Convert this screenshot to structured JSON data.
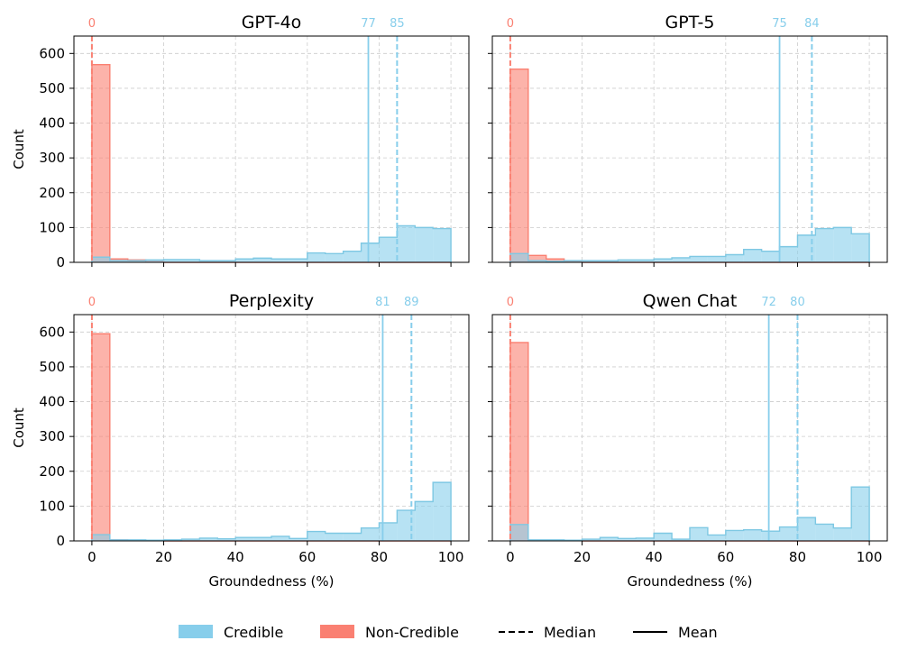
{
  "figure": {
    "legend": {
      "placement": "bottom-center",
      "entries": [
        {
          "label": "Credible",
          "kind": "patch",
          "color": "#87ceeb"
        },
        {
          "label": "Non-Credible",
          "kind": "patch",
          "color": "#fa8072"
        },
        {
          "label": "Median",
          "kind": "dashed-line",
          "color": "#000000"
        },
        {
          "label": "Mean",
          "kind": "solid-line",
          "color": "#000000"
        }
      ]
    },
    "colors": {
      "credible": "#87ceeb",
      "credible_edge": "#7ec8e3",
      "noncredible": "#fa8072",
      "noncredible_fill": "#f9a99f",
      "grid": "#cccccc"
    }
  },
  "chart_data": [
    {
      "type": "histogram",
      "title": "GPT-4o",
      "xlabel": "",
      "ylabel": "Count",
      "xlim": [
        -5,
        105
      ],
      "ylim": [
        0,
        650
      ],
      "xticks": [
        0,
        20,
        40,
        60,
        80,
        100
      ],
      "yticks": [
        0,
        100,
        200,
        300,
        400,
        500,
        600
      ],
      "grid": true,
      "bin_edges": [
        0,
        5,
        10,
        15,
        20,
        25,
        30,
        35,
        40,
        45,
        50,
        55,
        60,
        65,
        70,
        75,
        80,
        85,
        90,
        95,
        100
      ],
      "series": [
        {
          "name": "Non-Credible",
          "counts": [
            568,
            10,
            7,
            2,
            0,
            0,
            0,
            0,
            0,
            0,
            0,
            0,
            0,
            0,
            0,
            0,
            0,
            0,
            0,
            0
          ],
          "median": 0,
          "mean": 0
        },
        {
          "name": "Credible",
          "counts": [
            15,
            5,
            5,
            7,
            8,
            8,
            5,
            5,
            10,
            12,
            10,
            10,
            27,
            25,
            32,
            55,
            72,
            105,
            100,
            97
          ],
          "median": 85,
          "mean": 77
        }
      ],
      "annotations": [
        "0",
        "77",
        "85"
      ]
    },
    {
      "type": "histogram",
      "title": "GPT-5",
      "xlabel": "",
      "ylabel": "",
      "xlim": [
        -5,
        105
      ],
      "ylim": [
        0,
        650
      ],
      "xticks": [
        0,
        20,
        40,
        60,
        80,
        100
      ],
      "yticks": [
        0,
        100,
        200,
        300,
        400,
        500,
        600
      ],
      "grid": true,
      "bin_edges": [
        0,
        5,
        10,
        15,
        20,
        25,
        30,
        35,
        40,
        45,
        50,
        55,
        60,
        65,
        70,
        75,
        80,
        85,
        90,
        95,
        100
      ],
      "series": [
        {
          "name": "Non-Credible",
          "counts": [
            555,
            20,
            10,
            2,
            0,
            0,
            0,
            0,
            0,
            0,
            0,
            0,
            0,
            0,
            0,
            0,
            0,
            0,
            0,
            0
          ],
          "median": 0,
          "mean": 0
        },
        {
          "name": "Credible",
          "counts": [
            25,
            5,
            3,
            5,
            5,
            5,
            7,
            7,
            10,
            13,
            17,
            17,
            22,
            37,
            32,
            45,
            78,
            97,
            100,
            82
          ],
          "median": 84,
          "mean": 75
        }
      ],
      "annotations": [
        "0",
        "75",
        "84"
      ]
    },
    {
      "type": "histogram",
      "title": "Perplexity",
      "xlabel": "Groundedness (%)",
      "ylabel": "Count",
      "xlim": [
        -5,
        105
      ],
      "ylim": [
        0,
        650
      ],
      "xticks": [
        0,
        20,
        40,
        60,
        80,
        100
      ],
      "yticks": [
        0,
        100,
        200,
        300,
        400,
        500,
        600
      ],
      "grid": true,
      "bin_edges": [
        0,
        5,
        10,
        15,
        20,
        25,
        30,
        35,
        40,
        45,
        50,
        55,
        60,
        65,
        70,
        75,
        80,
        85,
        90,
        95,
        100
      ],
      "series": [
        {
          "name": "Non-Credible",
          "counts": [
            595,
            3,
            2,
            1,
            0,
            0,
            0,
            0,
            0,
            0,
            0,
            0,
            0,
            0,
            0,
            0,
            0,
            0,
            0,
            0
          ],
          "median": 0,
          "mean": 0
        },
        {
          "name": "Credible",
          "counts": [
            18,
            3,
            3,
            2,
            3,
            5,
            8,
            6,
            10,
            10,
            13,
            7,
            27,
            22,
            22,
            37,
            52,
            88,
            113,
            168
          ],
          "median": 89,
          "mean": 81
        }
      ],
      "annotations": [
        "0",
        "81",
        "89"
      ]
    },
    {
      "type": "histogram",
      "title": "Qwen Chat",
      "xlabel": "Groundedness (%)",
      "ylabel": "",
      "xlim": [
        -5,
        105
      ],
      "ylim": [
        0,
        650
      ],
      "xticks": [
        0,
        20,
        40,
        60,
        80,
        100
      ],
      "yticks": [
        0,
        100,
        200,
        300,
        400,
        500,
        600
      ],
      "grid": true,
      "bin_edges": [
        0,
        5,
        10,
        15,
        20,
        25,
        30,
        35,
        40,
        45,
        50,
        55,
        60,
        65,
        70,
        75,
        80,
        85,
        90,
        95,
        100
      ],
      "series": [
        {
          "name": "Non-Credible",
          "counts": [
            570,
            2,
            1,
            1,
            0,
            0,
            0,
            0,
            0,
            0,
            0,
            0,
            0,
            0,
            0,
            0,
            0,
            0,
            0,
            0
          ],
          "median": 0,
          "mean": 0
        },
        {
          "name": "Credible",
          "counts": [
            47,
            3,
            3,
            2,
            5,
            10,
            7,
            8,
            22,
            5,
            38,
            17,
            30,
            32,
            28,
            40,
            67,
            48,
            37,
            155
          ],
          "median": 80,
          "mean": 72
        }
      ],
      "annotations": [
        "0",
        "72",
        "80"
      ]
    }
  ]
}
